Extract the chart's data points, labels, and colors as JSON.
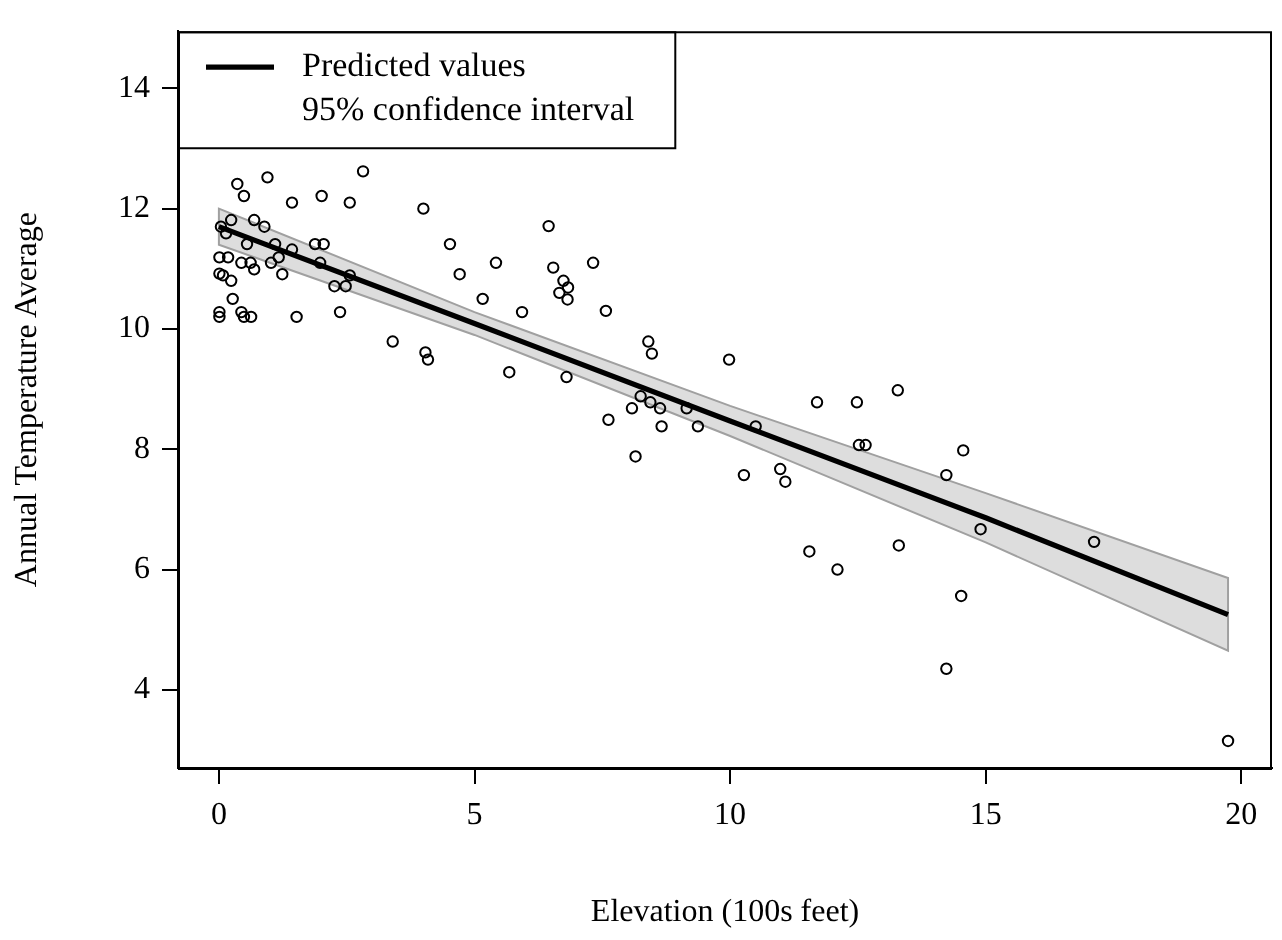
{
  "chart_data": {
    "type": "scatter",
    "xlabel": "Elevation (100s feet)",
    "ylabel": "Annual Temperature Average",
    "xlim": [
      -0.8,
      20.6
    ],
    "ylim": [
      2.7,
      14.95
    ],
    "xticks": [
      0,
      5,
      10,
      15,
      20
    ],
    "yticks": [
      4,
      6,
      8,
      10,
      12,
      14
    ],
    "legend": "top left",
    "annotations": [
      "95% confidence interval"
    ],
    "series": [
      {
        "marker": "circle",
        "color": "#000000",
        "x": [
          0.36,
          0.49,
          0.95,
          2.82,
          2.01,
          1.43,
          2.56,
          4.0,
          6.45,
          0.04,
          0.24,
          0.14,
          0.69,
          0.89,
          1.1,
          1.43,
          1.88,
          2.05,
          0.55,
          4.52,
          0.01,
          0.18,
          0.44,
          0.62,
          0.69,
          1.02,
          1.17,
          1.98,
          5.42,
          6.54,
          0.01,
          0.08,
          0.24,
          1.24,
          4.71,
          6.74,
          6.83,
          6.66,
          6.82,
          2.26,
          2.48,
          2.56,
          0.27,
          5.16,
          0.01,
          0.01,
          0.44,
          0.49,
          0.63,
          1.52,
          2.37,
          5.93,
          3.4,
          4.04,
          4.09,
          5.68,
          6.8,
          7.32,
          7.57,
          8.4,
          8.47,
          9.98,
          8.25,
          8.44,
          8.63,
          8.08,
          7.62,
          9.15,
          8.66,
          9.37,
          10.5,
          11.7,
          12.48,
          13.28,
          12.52,
          12.65,
          8.15,
          10.27,
          10.98,
          11.08,
          14.23,
          14.56,
          14.9,
          17.12,
          14.52,
          14.23,
          19.74,
          11.55,
          12.1,
          13.3
        ],
        "values": [
          12.41,
          12.21,
          12.52,
          12.62,
          12.21,
          12.1,
          12.1,
          12.0,
          11.71,
          11.7,
          11.81,
          11.59,
          11.81,
          11.7,
          11.41,
          11.32,
          11.41,
          11.41,
          11.41,
          11.41,
          11.19,
          11.19,
          11.1,
          11.1,
          10.99,
          11.1,
          11.19,
          11.1,
          11.1,
          11.02,
          10.92,
          10.89,
          10.8,
          10.91,
          10.91,
          10.8,
          10.69,
          10.6,
          10.49,
          10.71,
          10.71,
          10.89,
          10.5,
          10.5,
          10.28,
          10.2,
          10.28,
          10.2,
          10.2,
          10.2,
          10.28,
          10.28,
          9.79,
          9.61,
          9.49,
          9.28,
          9.2,
          11.1,
          10.3,
          9.79,
          9.59,
          9.49,
          8.88,
          8.78,
          8.68,
          8.68,
          8.49,
          8.68,
          8.38,
          8.38,
          8.38,
          8.78,
          8.78,
          8.98,
          8.07,
          8.07,
          7.88,
          7.57,
          7.67,
          7.46,
          7.57,
          7.98,
          6.67,
          6.46,
          5.56,
          4.35,
          3.15,
          6.3,
          6.0,
          6.4
        ]
      },
      {
        "type": "line",
        "marker": "none",
        "name": "Predicted values",
        "color": "#000000",
        "x": [
          0,
          5,
          10,
          15,
          19.74
        ],
        "values": [
          11.7,
          10.09,
          8.47,
          6.86,
          5.25
        ],
        "lower": [
          11.4,
          9.9,
          8.22,
          6.45,
          4.65
        ],
        "upper": [
          12.0,
          10.28,
          8.72,
          7.27,
          5.86
        ]
      }
    ]
  }
}
